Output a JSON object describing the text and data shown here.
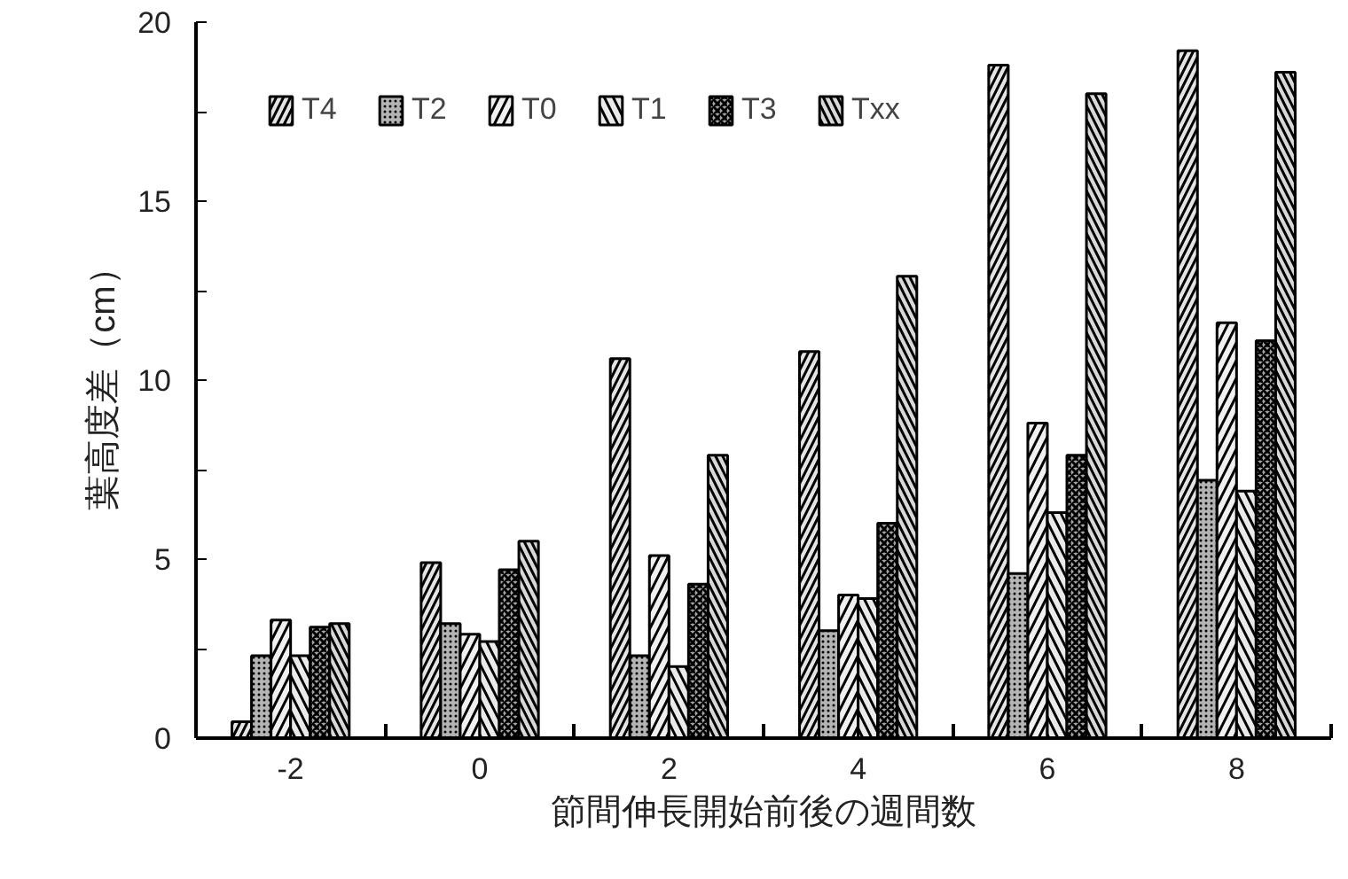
{
  "chart_data": {
    "type": "bar",
    "xlabel": "節間伸長開始前後の週間数",
    "ylabel": "葉高度差（cm）",
    "categories": [
      "-2",
      "0",
      "2",
      "4",
      "6",
      "8"
    ],
    "series": [
      {
        "name": "T4",
        "color": "#e4e4e4",
        "values": [
          0.46,
          4.9,
          10.6,
          10.8,
          18.8,
          19.2
        ]
      },
      {
        "name": "T2",
        "color": "#b4b4b4",
        "values": [
          2.3,
          3.2,
          2.3,
          3.0,
          4.6,
          7.2
        ]
      },
      {
        "name": "T0",
        "color": "#f0f0f0",
        "values": [
          3.3,
          2.9,
          5.1,
          4.0,
          8.8,
          11.6
        ]
      },
      {
        "name": "T1",
        "color": "#eaeaea",
        "values": [
          2.3,
          2.7,
          2.0,
          3.9,
          6.3,
          6.9
        ]
      },
      {
        "name": "T3",
        "color": "#a4a4a4",
        "values": [
          3.1,
          4.7,
          4.3,
          6.0,
          7.9,
          11.1
        ]
      },
      {
        "name": "Txx",
        "color": "#d8d8d8",
        "values": [
          3.2,
          5.5,
          7.9,
          12.9,
          18.0,
          18.6
        ]
      }
    ],
    "ylim": [
      0,
      20
    ],
    "yticks": [
      0,
      {
        "value": 2.5,
        "label": null
      },
      5,
      {
        "value": 7.5,
        "label": null
      },
      10,
      {
        "value": 12.5,
        "label": null
      },
      15,
      {
        "value": 17.5,
        "label": null
      },
      20
    ],
    "grid": false,
    "legend": "top left"
  }
}
